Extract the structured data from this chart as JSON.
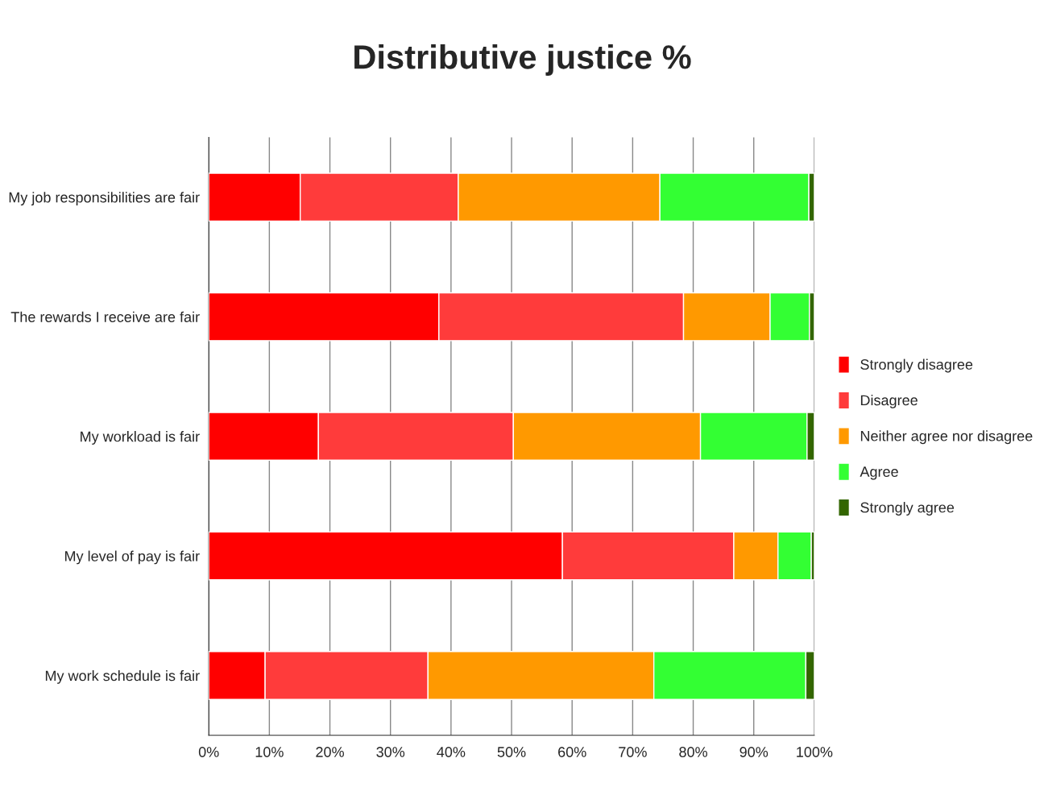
{
  "chart_data": {
    "type": "bar",
    "orientation": "horizontal",
    "stacked": true,
    "title": "Distributive justice %",
    "categories": [
      "My job responsibilities are fair",
      "The rewards I receive are fair",
      "My workload is fair",
      "My level of pay is fair",
      "My work schedule is fair"
    ],
    "series": [
      {
        "name": "Strongly disagree",
        "color": "#ff0000",
        "values": [
          15.1,
          38.0,
          18.1,
          58.4,
          9.3
        ]
      },
      {
        "name": "Disagree",
        "color": "#ff3b3b",
        "values": [
          26.1,
          40.4,
          32.2,
          28.3,
          26.9
        ]
      },
      {
        "name": "Neither agree nor disagree",
        "color": "#ff9900",
        "values": [
          33.3,
          14.3,
          30.9,
          7.3,
          37.3
        ]
      },
      {
        "name": "Agree",
        "color": "#33ff33",
        "values": [
          24.6,
          6.5,
          17.6,
          5.5,
          25.1
        ]
      },
      {
        "name": "Strongly agree",
        "color": "#336600",
        "values": [
          0.9,
          0.8,
          1.2,
          0.5,
          1.4
        ]
      }
    ],
    "xlim": [
      0,
      100
    ],
    "xticks": [
      {
        "value": 0,
        "label": "0%"
      },
      {
        "value": 10,
        "label": "10%"
      },
      {
        "value": 20,
        "label": "20%"
      },
      {
        "value": 30,
        "label": "30%"
      },
      {
        "value": 40,
        "label": "40%"
      },
      {
        "value": 50,
        "label": "50%"
      },
      {
        "value": 60,
        "label": "60%"
      },
      {
        "value": 70,
        "label": "70%"
      },
      {
        "value": 80,
        "label": "80%"
      },
      {
        "value": 90,
        "label": "90%"
      },
      {
        "value": 100,
        "label": "100%"
      }
    ],
    "grid": "x",
    "legend": "right"
  }
}
